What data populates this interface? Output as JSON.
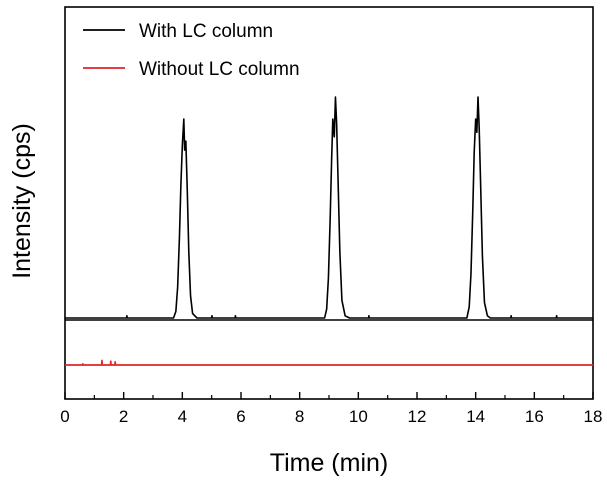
{
  "chart_data": {
    "type": "line",
    "title": "",
    "xlabel": "Time (min)",
    "ylabel": "Intensity (cps)",
    "xlim": [
      0,
      18
    ],
    "x_ticks": [
      "0",
      "2",
      "4",
      "6",
      "8",
      "10",
      "12",
      "14",
      "16",
      "18"
    ],
    "y_ticks_shown": false,
    "grid": false,
    "legend_position": "top-left",
    "series": [
      {
        "name": "With LC column",
        "color": "#000000",
        "points": [
          [
            0,
            0
          ],
          [
            2.1,
            0
          ],
          [
            2.11,
            0.01
          ],
          [
            2.12,
            0
          ],
          [
            3.7,
            0
          ],
          [
            3.78,
            0.03
          ],
          [
            3.84,
            0.14
          ],
          [
            3.9,
            0.36
          ],
          [
            3.95,
            0.6
          ],
          [
            4.0,
            0.78
          ],
          [
            4.05,
            0.9
          ],
          [
            4.08,
            0.76
          ],
          [
            4.12,
            0.8
          ],
          [
            4.17,
            0.57
          ],
          [
            4.22,
            0.3
          ],
          [
            4.28,
            0.1
          ],
          [
            4.35,
            0.02
          ],
          [
            4.5,
            0
          ],
          [
            5.0,
            0
          ],
          [
            5.01,
            0.01
          ],
          [
            5.02,
            0
          ],
          [
            5.8,
            0
          ],
          [
            5.81,
            0.01
          ],
          [
            5.82,
            0
          ],
          [
            8.85,
            0
          ],
          [
            8.92,
            0.04
          ],
          [
            8.98,
            0.18
          ],
          [
            9.04,
            0.45
          ],
          [
            9.09,
            0.72
          ],
          [
            9.13,
            0.9
          ],
          [
            9.18,
            0.82
          ],
          [
            9.22,
            1.0
          ],
          [
            9.26,
            0.88
          ],
          [
            9.31,
            0.62
          ],
          [
            9.37,
            0.3
          ],
          [
            9.44,
            0.08
          ],
          [
            9.55,
            0.01
          ],
          [
            9.7,
            0
          ],
          [
            10.35,
            0
          ],
          [
            10.36,
            0.01
          ],
          [
            10.37,
            0
          ],
          [
            13.7,
            0
          ],
          [
            13.78,
            0.05
          ],
          [
            13.84,
            0.2
          ],
          [
            13.9,
            0.48
          ],
          [
            13.95,
            0.75
          ],
          [
            14.0,
            0.9
          ],
          [
            14.04,
            0.84
          ],
          [
            14.08,
            1.0
          ],
          [
            14.12,
            0.86
          ],
          [
            14.17,
            0.6
          ],
          [
            14.23,
            0.28
          ],
          [
            14.3,
            0.07
          ],
          [
            14.4,
            0.01
          ],
          [
            14.5,
            0
          ],
          [
            15.2,
            0
          ],
          [
            15.21,
            0.01
          ],
          [
            15.22,
            0
          ],
          [
            16.75,
            0
          ],
          [
            16.76,
            0.01
          ],
          [
            16.77,
            0
          ],
          [
            18,
            0
          ]
        ]
      },
      {
        "name": "Without LC column",
        "color": "#e0242a",
        "points": [
          [
            0,
            0
          ],
          [
            0.6,
            0
          ],
          [
            0.61,
            0.12
          ],
          [
            0.62,
            0
          ],
          [
            1.25,
            0
          ],
          [
            1.26,
            0.5
          ],
          [
            1.27,
            0
          ],
          [
            1.55,
            0
          ],
          [
            1.56,
            0.42
          ],
          [
            1.57,
            0
          ],
          [
            1.7,
            0
          ],
          [
            1.71,
            0.35
          ],
          [
            1.72,
            0
          ],
          [
            18,
            0
          ]
        ]
      }
    ]
  }
}
